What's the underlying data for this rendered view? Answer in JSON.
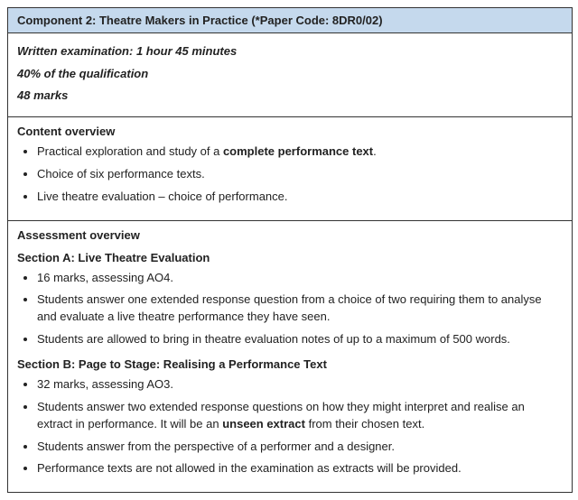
{
  "header": {
    "title": "Component 2: Theatre Makers in Practice (*Paper Code: 8DR0/02)",
    "bg_color": "#c5d9ed"
  },
  "meta": {
    "line1": "Written examination: 1 hour 45 minutes",
    "line2": "40% of the qualification",
    "line3": "48 marks"
  },
  "content_overview": {
    "title": "Content overview",
    "bullets": [
      {
        "pre": "Practical exploration and study of a ",
        "bold": "complete performance text",
        "post": "."
      },
      {
        "pre": "Choice of six performance texts.",
        "bold": "",
        "post": ""
      },
      {
        "pre": "Live theatre evaluation – choice of performance.",
        "bold": "",
        "post": ""
      }
    ]
  },
  "assessment_overview": {
    "title": "Assessment overview",
    "section_a": {
      "title": "Section A: Live Theatre Evaluation",
      "bullets": [
        {
          "pre": "16 marks, assessing AO4.",
          "bold": "",
          "post": ""
        },
        {
          "pre": "Students answer one extended response question from a choice of two requiring them to analyse and evaluate a live theatre performance they have seen.",
          "bold": "",
          "post": ""
        },
        {
          "pre": "Students are allowed to bring in theatre evaluation notes of up to a maximum of 500 words.",
          "bold": "",
          "post": ""
        }
      ]
    },
    "section_b": {
      "title": "Section B: Page to Stage: Realising a Performance Text",
      "bullets": [
        {
          "pre": "32 marks, assessing AO3.",
          "bold": "",
          "post": ""
        },
        {
          "pre": "Students answer two extended response questions on how they might interpret and realise an extract in performance. It will be an ",
          "bold": "unseen extract",
          "post": " from their chosen text."
        },
        {
          "pre": "Students answer from the perspective of a performer and a designer.",
          "bold": "",
          "post": ""
        },
        {
          "pre": "Performance texts are not allowed in the examination as extracts will be provided.",
          "bold": "",
          "post": ""
        }
      ]
    }
  }
}
